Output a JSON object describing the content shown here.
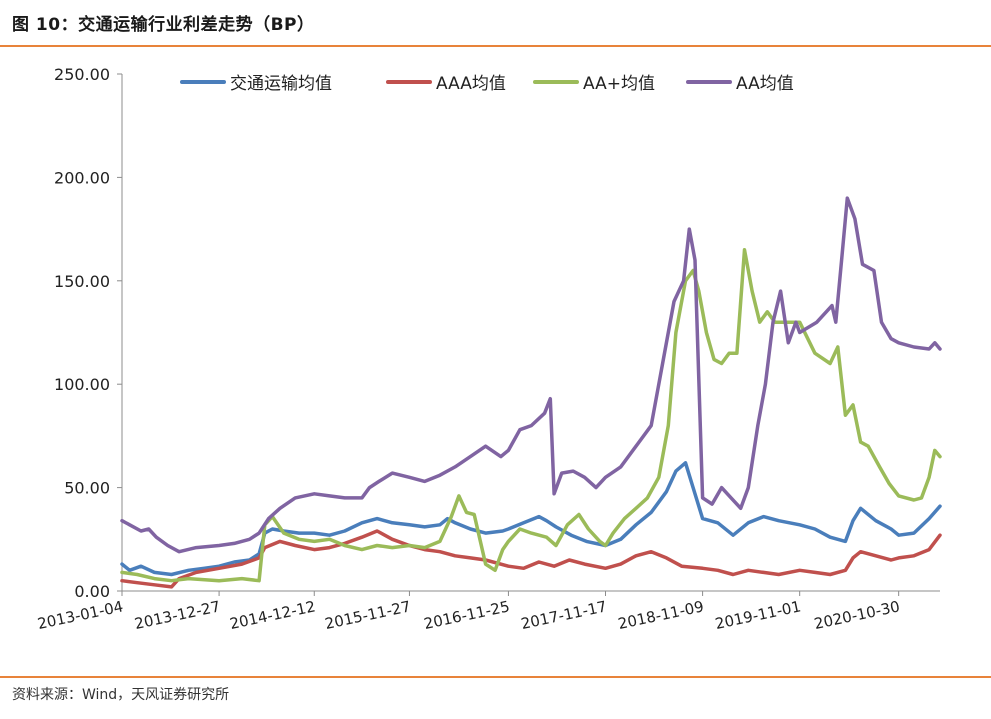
{
  "figure": {
    "title": "图 10：交通运输行业利差走势（BP）",
    "source": "资料来源：Wind，天风证券研究所"
  },
  "chart_data": {
    "type": "line",
    "title": "",
    "xlabel": "",
    "ylabel": "",
    "ylim": [
      0,
      250
    ],
    "yticks": [
      "0.00",
      "50.00",
      "100.00",
      "150.00",
      "200.00",
      "250.00"
    ],
    "x_tick_labels": [
      "2013-01-04",
      "2013-12-27",
      "2014-12-12",
      "2015-11-27",
      "2016-11-25",
      "2017-11-17",
      "2018-11-09",
      "2019-11-01",
      "2020-10-30"
    ],
    "x_range": [
      "2013-01-04",
      "2021-03-31"
    ],
    "grid": false,
    "legend_position": "top",
    "series": [
      {
        "name": "交通运输均值",
        "color": "#4a7ebb",
        "points": [
          [
            "2013-01-04",
            13
          ],
          [
            "2013-02-01",
            10
          ],
          [
            "2013-03-15",
            12
          ],
          [
            "2013-05-03",
            9
          ],
          [
            "2013-07-05",
            8
          ],
          [
            "2013-09-06",
            10
          ],
          [
            "2013-11-01",
            11
          ],
          [
            "2013-12-27",
            12
          ],
          [
            "2014-02-21",
            14
          ],
          [
            "2014-04-18",
            15
          ],
          [
            "2014-05-23",
            18
          ],
          [
            "2014-06-13",
            28
          ],
          [
            "2014-07-11",
            30
          ],
          [
            "2014-08-22",
            29
          ],
          [
            "2014-10-17",
            28
          ],
          [
            "2014-12-12",
            28
          ],
          [
            "2015-02-06",
            27
          ],
          [
            "2015-04-03",
            29
          ],
          [
            "2015-06-05",
            33
          ],
          [
            "2015-07-31",
            35
          ],
          [
            "2015-09-25",
            33
          ],
          [
            "2015-11-27",
            32
          ],
          [
            "2016-01-22",
            31
          ],
          [
            "2016-03-18",
            32
          ],
          [
            "2016-04-15",
            35
          ],
          [
            "2016-05-13",
            33
          ],
          [
            "2016-07-08",
            30
          ],
          [
            "2016-09-02",
            28
          ],
          [
            "2016-11-04",
            29
          ],
          [
            "2016-11-25",
            30
          ],
          [
            "2017-01-20",
            33
          ],
          [
            "2017-03-17",
            36
          ],
          [
            "2017-04-14",
            34
          ],
          [
            "2017-05-19",
            31
          ],
          [
            "2017-07-14",
            27
          ],
          [
            "2017-09-08",
            24
          ],
          [
            "2017-11-17",
            22
          ],
          [
            "2018-01-12",
            25
          ],
          [
            "2018-03-09",
            32
          ],
          [
            "2018-05-04",
            38
          ],
          [
            "2018-06-29",
            48
          ],
          [
            "2018-08-03",
            58
          ],
          [
            "2018-09-07",
            62
          ],
          [
            "2018-10-05",
            50
          ],
          [
            "2018-11-09",
            35
          ],
          [
            "2019-01-04",
            33
          ],
          [
            "2019-03-01",
            27
          ],
          [
            "2019-04-26",
            33
          ],
          [
            "2019-06-21",
            36
          ],
          [
            "2019-08-16",
            34
          ],
          [
            "2019-11-01",
            32
          ],
          [
            "2019-12-27",
            30
          ],
          [
            "2020-02-21",
            26
          ],
          [
            "2020-04-17",
            24
          ],
          [
            "2020-05-15",
            34
          ],
          [
            "2020-06-12",
            40
          ],
          [
            "2020-08-07",
            34
          ],
          [
            "2020-10-02",
            30
          ],
          [
            "2020-10-30",
            27
          ],
          [
            "2020-12-25",
            28
          ],
          [
            "2021-02-19",
            35
          ],
          [
            "2021-03-31",
            41
          ]
        ]
      },
      {
        "name": "AAA均值",
        "color": "#c0504d",
        "points": [
          [
            "2013-01-04",
            5
          ],
          [
            "2013-03-01",
            4
          ],
          [
            "2013-05-03",
            3
          ],
          [
            "2013-07-05",
            2
          ],
          [
            "2013-08-02",
            6
          ],
          [
            "2013-10-04",
            9
          ],
          [
            "2013-12-27",
            11
          ],
          [
            "2014-03-21",
            13
          ],
          [
            "2014-05-23",
            16
          ],
          [
            "2014-06-13",
            21
          ],
          [
            "2014-08-08",
            24
          ],
          [
            "2014-10-03",
            22
          ],
          [
            "2014-12-12",
            20
          ],
          [
            "2015-02-06",
            21
          ],
          [
            "2015-04-03",
            23
          ],
          [
            "2015-06-05",
            26
          ],
          [
            "2015-07-31",
            29
          ],
          [
            "2015-09-25",
            25
          ],
          [
            "2015-11-27",
            22
          ],
          [
            "2016-01-22",
            20
          ],
          [
            "2016-03-18",
            19
          ],
          [
            "2016-05-13",
            17
          ],
          [
            "2016-07-08",
            16
          ],
          [
            "2016-09-02",
            15
          ],
          [
            "2016-11-25",
            12
          ],
          [
            "2017-01-20",
            11
          ],
          [
            "2017-03-17",
            14
          ],
          [
            "2017-05-12",
            12
          ],
          [
            "2017-07-07",
            15
          ],
          [
            "2017-09-01",
            13
          ],
          [
            "2017-11-17",
            11
          ],
          [
            "2018-01-12",
            13
          ],
          [
            "2018-03-09",
            17
          ],
          [
            "2018-05-04",
            19
          ],
          [
            "2018-06-29",
            16
          ],
          [
            "2018-08-24",
            12
          ],
          [
            "2018-11-09",
            11
          ],
          [
            "2019-01-04",
            10
          ],
          [
            "2019-03-01",
            8
          ],
          [
            "2019-04-26",
            10
          ],
          [
            "2019-06-21",
            9
          ],
          [
            "2019-08-16",
            8
          ],
          [
            "2019-11-01",
            10
          ],
          [
            "2019-12-27",
            9
          ],
          [
            "2020-02-21",
            8
          ],
          [
            "2020-04-17",
            10
          ],
          [
            "2020-05-15",
            16
          ],
          [
            "2020-06-12",
            19
          ],
          [
            "2020-08-07",
            17
          ],
          [
            "2020-10-02",
            15
          ],
          [
            "2020-10-30",
            16
          ],
          [
            "2020-12-25",
            17
          ],
          [
            "2021-02-19",
            20
          ],
          [
            "2021-03-31",
            27
          ]
        ]
      },
      {
        "name": "AA+均值",
        "color": "#9bbb59",
        "points": [
          [
            "2013-01-04",
            9
          ],
          [
            "2013-03-01",
            8
          ],
          [
            "2013-05-03",
            6
          ],
          [
            "2013-07-05",
            5
          ],
          [
            "2013-09-06",
            6
          ],
          [
            "2013-12-27",
            5
          ],
          [
            "2014-03-21",
            6
          ],
          [
            "2014-05-23",
            5
          ],
          [
            "2014-06-13",
            32
          ],
          [
            "2014-07-11",
            36
          ],
          [
            "2014-08-22",
            28
          ],
          [
            "2014-10-17",
            25
          ],
          [
            "2014-12-12",
            24
          ],
          [
            "2015-02-06",
            25
          ],
          [
            "2015-04-03",
            22
          ],
          [
            "2015-06-05",
            20
          ],
          [
            "2015-07-31",
            22
          ],
          [
            "2015-09-25",
            21
          ],
          [
            "2015-11-27",
            22
          ],
          [
            "2016-01-22",
            21
          ],
          [
            "2016-03-18",
            24
          ],
          [
            "2016-04-29",
            36
          ],
          [
            "2016-05-27",
            46
          ],
          [
            "2016-06-24",
            38
          ],
          [
            "2016-07-22",
            37
          ],
          [
            "2016-08-12",
            25
          ],
          [
            "2016-09-02",
            13
          ],
          [
            "2016-10-07",
            10
          ],
          [
            "2016-11-04",
            20
          ],
          [
            "2016-11-25",
            24
          ],
          [
            "2017-01-06",
            30
          ],
          [
            "2017-02-17",
            28
          ],
          [
            "2017-04-14",
            26
          ],
          [
            "2017-05-19",
            22
          ],
          [
            "2017-06-30",
            32
          ],
          [
            "2017-08-11",
            37
          ],
          [
            "2017-09-15",
            30
          ],
          [
            "2017-10-27",
            24
          ],
          [
            "2017-11-17",
            22
          ],
          [
            "2017-12-15",
            28
          ],
          [
            "2018-01-26",
            35
          ],
          [
            "2018-03-09",
            40
          ],
          [
            "2018-04-20",
            45
          ],
          [
            "2018-06-01",
            55
          ],
          [
            "2018-07-06",
            80
          ],
          [
            "2018-08-03",
            125
          ],
          [
            "2018-09-07",
            150
          ],
          [
            "2018-10-05",
            155
          ],
          [
            "2018-10-26",
            145
          ],
          [
            "2018-11-23",
            125
          ],
          [
            "2018-12-21",
            112
          ],
          [
            "2019-01-18",
            110
          ],
          [
            "2019-02-15",
            115
          ],
          [
            "2019-03-15",
            115
          ],
          [
            "2019-04-12",
            165
          ],
          [
            "2019-05-10",
            145
          ],
          [
            "2019-06-07",
            130
          ],
          [
            "2019-07-05",
            135
          ],
          [
            "2019-08-02",
            130
          ],
          [
            "2019-11-01",
            130
          ],
          [
            "2019-12-27",
            115
          ],
          [
            "2020-02-21",
            110
          ],
          [
            "2020-03-20",
            118
          ],
          [
            "2020-04-17",
            85
          ],
          [
            "2020-05-15",
            90
          ],
          [
            "2020-06-12",
            72
          ],
          [
            "2020-07-10",
            70
          ],
          [
            "2020-08-21",
            60
          ],
          [
            "2020-09-25",
            52
          ],
          [
            "2020-10-30",
            46
          ],
          [
            "2020-12-25",
            44
          ],
          [
            "2021-01-22",
            45
          ],
          [
            "2021-02-19",
            55
          ],
          [
            "2021-03-12",
            68
          ],
          [
            "2021-03-31",
            65
          ]
        ]
      },
      {
        "name": "AA均值",
        "color": "#8064a2",
        "points": [
          [
            "2013-01-04",
            34
          ],
          [
            "2013-02-01",
            32
          ],
          [
            "2013-03-15",
            29
          ],
          [
            "2013-04-12",
            30
          ],
          [
            "2013-05-10",
            26
          ],
          [
            "2013-06-21",
            22
          ],
          [
            "2013-08-02",
            19
          ],
          [
            "2013-10-04",
            21
          ],
          [
            "2013-12-27",
            22
          ],
          [
            "2014-02-21",
            23
          ],
          [
            "2014-04-18",
            25
          ],
          [
            "2014-05-23",
            28
          ],
          [
            "2014-06-27",
            35
          ],
          [
            "2014-08-08",
            40
          ],
          [
            "2014-10-03",
            45
          ],
          [
            "2014-12-12",
            47
          ],
          [
            "2015-02-06",
            46
          ],
          [
            "2015-04-03",
            45
          ],
          [
            "2015-06-05",
            45
          ],
          [
            "2015-07-03",
            50
          ],
          [
            "2015-08-07",
            53
          ],
          [
            "2015-09-25",
            57
          ],
          [
            "2015-11-27",
            55
          ],
          [
            "2016-01-22",
            53
          ],
          [
            "2016-03-18",
            56
          ],
          [
            "2016-05-13",
            60
          ],
          [
            "2016-07-08",
            65
          ],
          [
            "2016-09-02",
            70
          ],
          [
            "2016-10-28",
            65
          ],
          [
            "2016-11-25",
            68
          ],
          [
            "2017-01-06",
            78
          ],
          [
            "2017-02-17",
            80
          ],
          [
            "2017-04-07",
            86
          ],
          [
            "2017-04-28",
            93
          ],
          [
            "2017-05-12",
            47
          ],
          [
            "2017-06-09",
            57
          ],
          [
            "2017-07-21",
            58
          ],
          [
            "2017-09-01",
            55
          ],
          [
            "2017-10-13",
            50
          ],
          [
            "2017-11-17",
            55
          ],
          [
            "2018-01-12",
            60
          ],
          [
            "2018-03-09",
            70
          ],
          [
            "2018-05-04",
            80
          ],
          [
            "2018-06-15",
            110
          ],
          [
            "2018-07-27",
            140
          ],
          [
            "2018-08-31",
            150
          ],
          [
            "2018-09-21",
            175
          ],
          [
            "2018-10-12",
            160
          ],
          [
            "2018-11-09",
            45
          ],
          [
            "2018-12-14",
            42
          ],
          [
            "2019-01-18",
            50
          ],
          [
            "2019-02-22",
            45
          ],
          [
            "2019-03-29",
            40
          ],
          [
            "2019-04-26",
            50
          ],
          [
            "2019-05-31",
            80
          ],
          [
            "2019-06-28",
            100
          ],
          [
            "2019-07-26",
            130
          ],
          [
            "2019-08-23",
            145
          ],
          [
            "2019-09-20",
            120
          ],
          [
            "2019-10-18",
            130
          ],
          [
            "2019-11-01",
            125
          ],
          [
            "2020-01-03",
            130
          ],
          [
            "2020-02-28",
            138
          ],
          [
            "2020-03-13",
            130
          ],
          [
            "2020-04-03",
            160
          ],
          [
            "2020-04-24",
            190
          ],
          [
            "2020-05-22",
            180
          ],
          [
            "2020-06-19",
            158
          ],
          [
            "2020-07-31",
            155
          ],
          [
            "2020-08-28",
            130
          ],
          [
            "2020-10-02",
            122
          ],
          [
            "2020-10-30",
            120
          ],
          [
            "2020-12-25",
            118
          ],
          [
            "2021-02-19",
            117
          ],
          [
            "2021-03-12",
            120
          ],
          [
            "2021-03-31",
            117
          ]
        ]
      }
    ]
  }
}
